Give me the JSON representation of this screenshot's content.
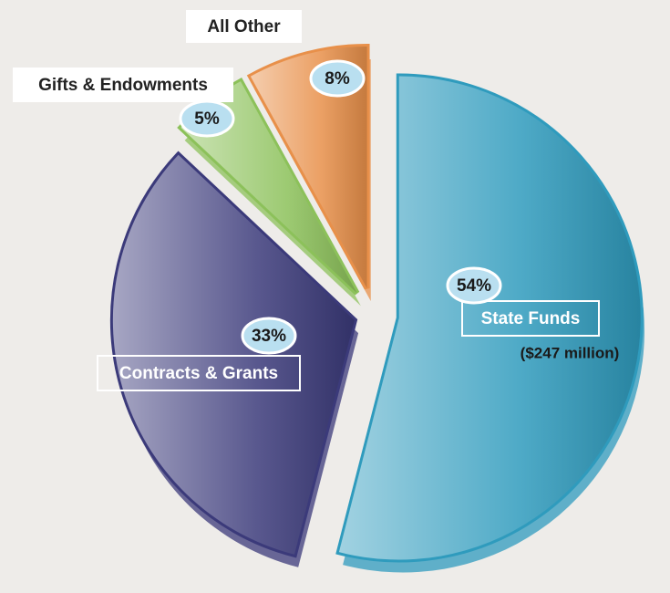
{
  "chart_data": {
    "type": "pie",
    "categories": [
      "State Funds",
      "Contracts & Grants",
      "Gifts & Endowments",
      "All Other"
    ],
    "values": [
      54,
      33,
      5,
      8
    ],
    "value_labels": [
      "54%",
      "33%",
      "5%",
      "8%"
    ],
    "colors": [
      "#2f9bbd",
      "#3b3a7a",
      "#8cc15a",
      "#e8904a"
    ],
    "annotation": "($247 million)"
  }
}
